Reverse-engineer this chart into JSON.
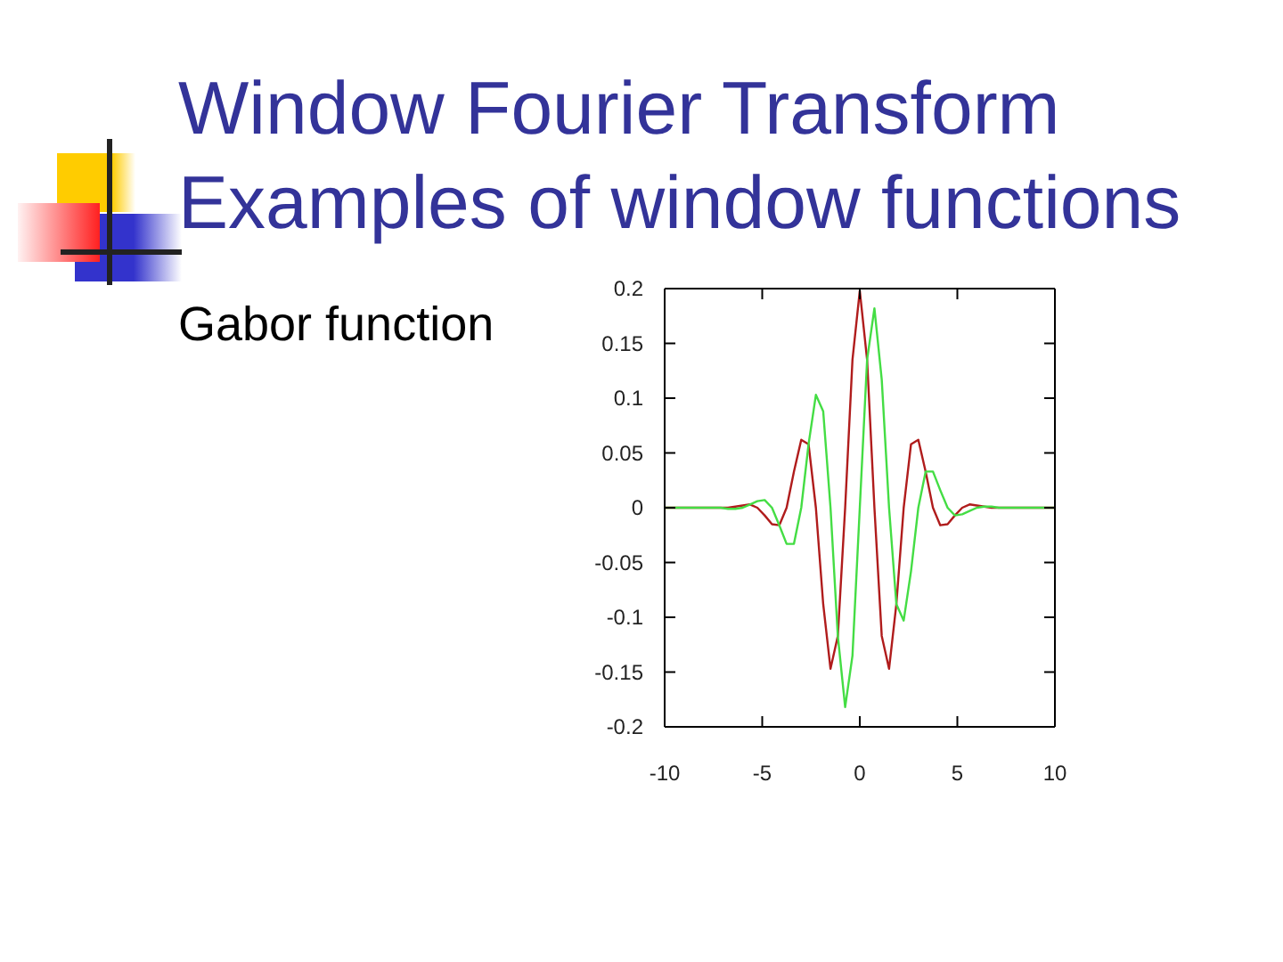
{
  "chart_data": {
    "type": "line",
    "title": "Window Fourier Transform",
    "subtitle": "Examples of window functions",
    "annotations": [
      "Gabor function"
    ],
    "x": [
      -10,
      -7.5,
      -7.125,
      -6.75,
      -6.375,
      -6,
      -5.625,
      -5.25,
      -4.875,
      -4.5,
      -4.125,
      -3.75,
      -3.375,
      -3,
      -2.625,
      -2.25,
      -1.875,
      -1.5,
      -1.125,
      -0.75,
      -0.375,
      0,
      0.375,
      0.75,
      1.125,
      1.5,
      1.875,
      2.25,
      2.625,
      3,
      3.375,
      3.75,
      4.125,
      4.5,
      4.875,
      5.25,
      5.625,
      6,
      6.375,
      6.75,
      7.125,
      7.5,
      10
    ],
    "series": [
      {
        "color": "#b01c1c",
        "values": [
          0,
          0,
          0,
          0,
          0.001,
          0.002,
          0.003,
          0,
          -0.007,
          -0.015,
          -0.016,
          0,
          0.033,
          0.062,
          0.058,
          0,
          -0.088,
          -0.147,
          -0.117,
          0,
          0.135,
          0.198,
          0.135,
          0,
          -0.117,
          -0.147,
          -0.088,
          0,
          0.058,
          0.062,
          0.033,
          0,
          -0.016,
          -0.015,
          -0.007,
          0,
          0.003,
          0.002,
          0.001,
          0,
          0,
          0,
          0
        ]
      },
      {
        "color": "#44dd44",
        "values": [
          0,
          0,
          0,
          -0.001,
          -0.001,
          0,
          0.003,
          0.006,
          0.007,
          0,
          -0.016,
          -0.033,
          -0.033,
          0,
          0.058,
          0.103,
          0.088,
          0,
          -0.117,
          -0.182,
          -0.135,
          0,
          0.135,
          0.182,
          0.117,
          0,
          -0.088,
          -0.103,
          -0.058,
          0,
          0.033,
          0.033,
          0.016,
          0,
          -0.007,
          -0.006,
          -0.003,
          0,
          0.001,
          0.001,
          0,
          0,
          0
        ]
      }
    ],
    "xlim": [
      -10,
      10
    ],
    "xticks": [
      -10,
      -5,
      0,
      5,
      10
    ],
    "ylim": [
      -0.2,
      0.2
    ],
    "yticks": [
      -0.2,
      -0.15,
      -0.1,
      -0.05,
      0,
      0.05,
      0.1,
      0.15,
      0.2
    ]
  }
}
